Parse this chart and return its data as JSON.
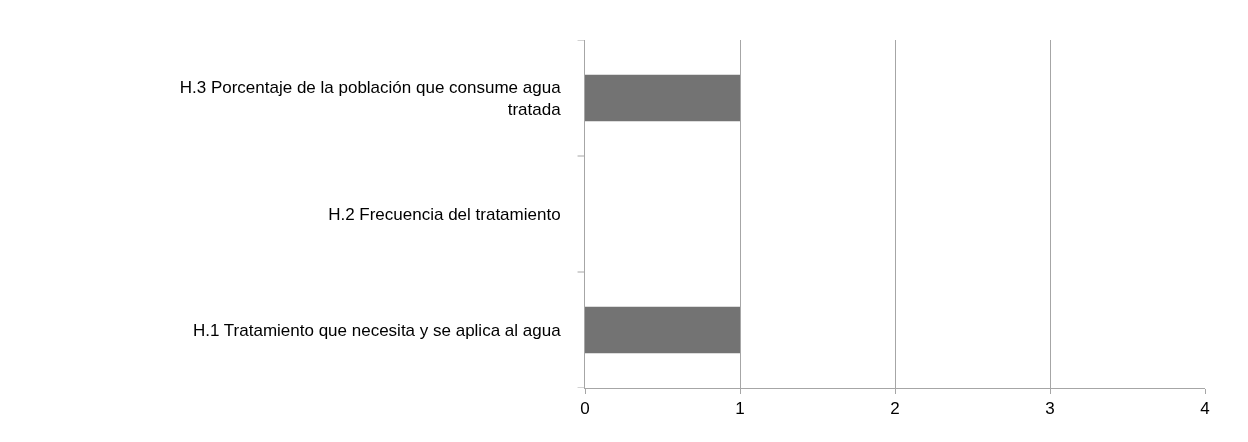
{
  "chart_data": {
    "type": "bar",
    "orientation": "horizontal",
    "categories": [
      "H.3 Porcentaje de la población que consume agua tratada",
      "H.2 Frecuencia del tratamiento",
      "H.1 Tratamiento que necesita y se aplica al agua"
    ],
    "values": [
      1,
      0,
      1
    ],
    "color": "#737373",
    "xlim": [
      0,
      4
    ],
    "xticks": [
      0,
      1,
      2,
      3,
      4
    ],
    "grid": "x",
    "legend": false
  }
}
